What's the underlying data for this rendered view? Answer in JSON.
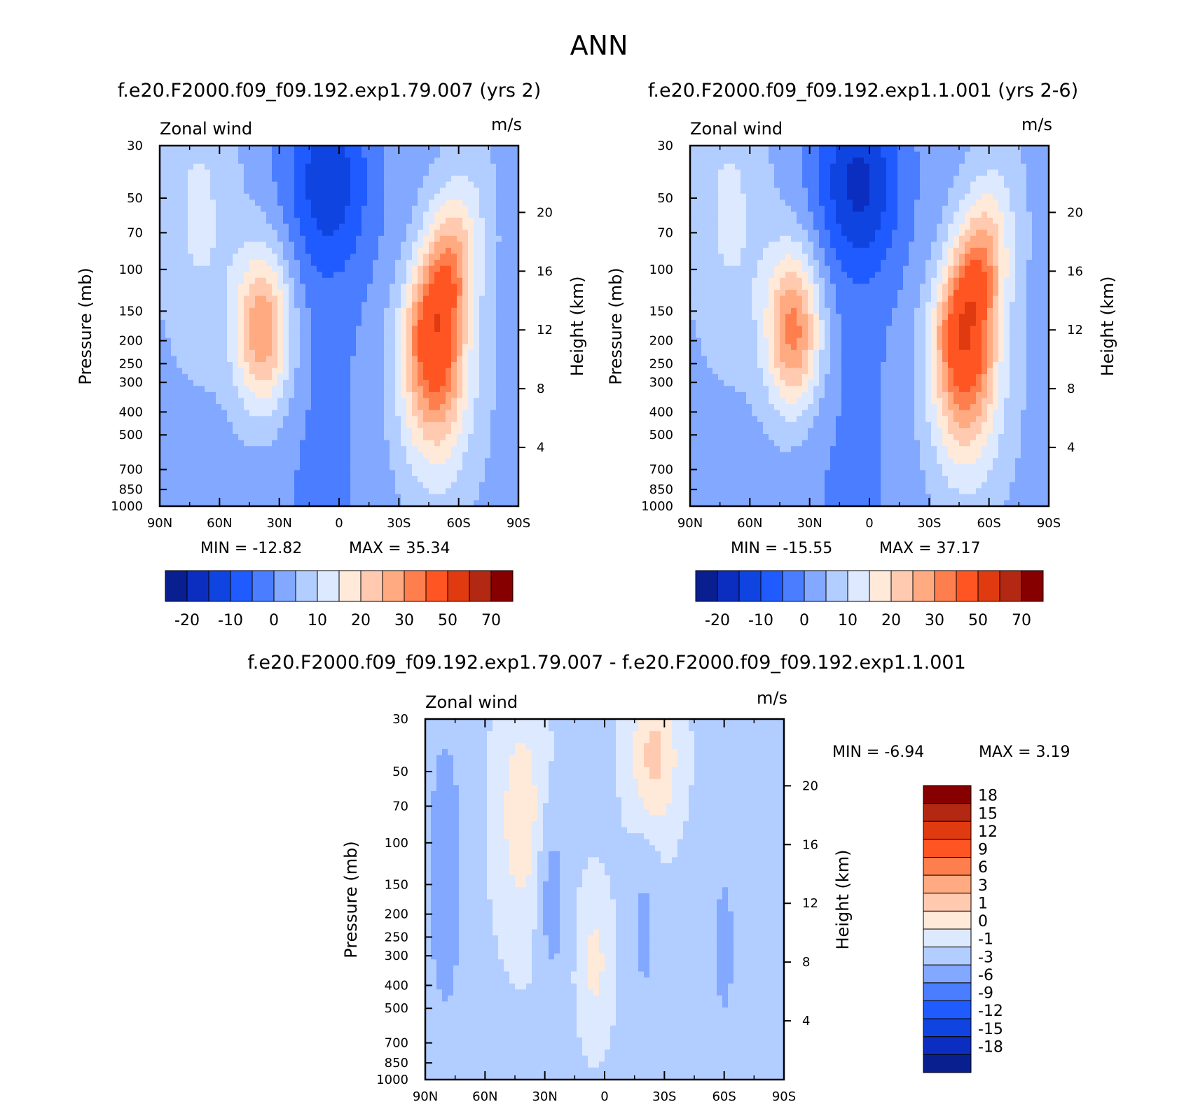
{
  "chart_data": {
    "type": "heatmap",
    "title": "ANN",
    "panels": [
      {
        "id": "top-left",
        "title": "f.e20.F2000.f09_f09.192.exp1.79.007 (yrs 2)",
        "left_label": "Zonal wind",
        "right_label": "m/s",
        "ylabel": "Pressure (mb)",
        "y2label": "Height (km)",
        "xticks": [
          "90N",
          "60N",
          "30N",
          "0",
          "30S",
          "60S",
          "90S"
        ],
        "yticks": [
          "30",
          "50",
          "70",
          "100",
          "150",
          "200",
          "250",
          "300",
          "400",
          "500",
          "700",
          "850",
          "1000"
        ],
        "y2ticks": [
          "20",
          "16",
          "12",
          "8",
          "4"
        ],
        "min_text": "MIN = -12.82",
        "max_text": "MAX = 35.34",
        "min": -12.82,
        "max": 35.34,
        "colorbar_labels": [
          "-20",
          "-10",
          "0",
          "10",
          "20",
          "30",
          "50",
          "70"
        ],
        "colorbar_colors": [
          "#0a1f8f",
          "#0b2ec0",
          "#0f44e0",
          "#1f5bff",
          "#4a7dff",
          "#82a8ff",
          "#b2cdff",
          "#dde9ff",
          "#ffe9d9",
          "#ffcab0",
          "#ffaa80",
          "#ff7e4e",
          "#ff5522",
          "#e03a10",
          "#b22812",
          "#870000"
        ],
        "jets": {
          "nh_peak": 28,
          "sh_peak": 35.34,
          "tropical_min": -12.82
        }
      },
      {
        "id": "top-right",
        "title": "f.e20.F2000.f09_f09.192.exp1.1.001 (yrs 2-6)",
        "left_label": "Zonal wind",
        "right_label": "m/s",
        "ylabel": "Pressure (mb)",
        "y2label": "Height (km)",
        "xticks": [
          "90N",
          "60N",
          "30N",
          "0",
          "30S",
          "60S",
          "90S"
        ],
        "yticks": [
          "30",
          "50",
          "70",
          "100",
          "150",
          "200",
          "250",
          "300",
          "400",
          "500",
          "700",
          "850",
          "1000"
        ],
        "y2ticks": [
          "20",
          "16",
          "12",
          "8",
          "4"
        ],
        "min_text": "MIN = -15.55",
        "max_text": "MAX = 37.17",
        "min": -15.55,
        "max": 37.17,
        "colorbar_labels": [
          "-20",
          "-10",
          "0",
          "10",
          "20",
          "30",
          "50",
          "70"
        ],
        "colorbar_colors": [
          "#0a1f8f",
          "#0b2ec0",
          "#0f44e0",
          "#1f5bff",
          "#4a7dff",
          "#82a8ff",
          "#b2cdff",
          "#dde9ff",
          "#ffe9d9",
          "#ffcab0",
          "#ffaa80",
          "#ff7e4e",
          "#ff5522",
          "#e03a10",
          "#b22812",
          "#870000"
        ],
        "jets": {
          "nh_peak": 30,
          "sh_peak": 37.17,
          "tropical_min": -15.55
        }
      },
      {
        "id": "bottom",
        "title": "f.e20.F2000.f09_f09.192.exp1.79.007 - f.e20.F2000.f09_f09.192.exp1.1.001",
        "left_label": "Zonal wind",
        "right_label": "m/s",
        "ylabel": "Pressure (mb)",
        "y2label": "Height (km)",
        "xticks": [
          "90N",
          "60N",
          "30N",
          "0",
          "30S",
          "60S",
          "90S"
        ],
        "yticks": [
          "30",
          "50",
          "70",
          "100",
          "150",
          "200",
          "250",
          "300",
          "400",
          "500",
          "700",
          "850",
          "1000"
        ],
        "y2ticks": [
          "20",
          "16",
          "12",
          "8",
          "4"
        ],
        "min_text": "MIN = -6.94",
        "max_text": "MAX = 3.19",
        "min": -6.94,
        "max": 3.19,
        "colorbar_labels": [
          "18",
          "15",
          "12",
          "9",
          "6",
          "3",
          "1",
          "0",
          "-1",
          "-3",
          "-6",
          "-9",
          "-12",
          "-15",
          "-18"
        ],
        "colorbar_colors": [
          "#870000",
          "#b22812",
          "#e03a10",
          "#ff5522",
          "#ff7e4e",
          "#ffaa80",
          "#ffcab0",
          "#ffe9d9",
          "#dde9ff",
          "#b2cdff",
          "#82a8ff",
          "#4a7dff",
          "#1f5bff",
          "#0f44e0",
          "#0b2ec0",
          "#0a1f8f"
        ]
      }
    ]
  }
}
